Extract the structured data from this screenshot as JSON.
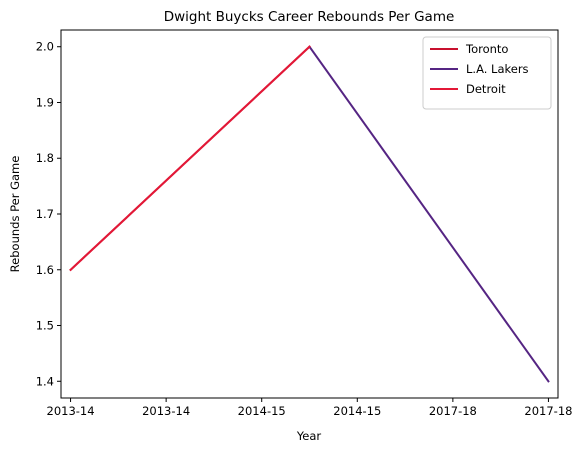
{
  "chart_data": {
    "type": "line",
    "title": "Dwight Buycks Career Rebounds Per Game",
    "xlabel": "Year",
    "ylabel": "Rebounds Per Game",
    "x_tick_labels": [
      "2013-14",
      "2013-14",
      "2014-15",
      "2014-15",
      "2017-18",
      "2017-18"
    ],
    "y_ticks": [
      1.4,
      1.5,
      1.6,
      1.7,
      1.8,
      1.9,
      2.0
    ],
    "xlim": [
      -0.1,
      5.1
    ],
    "ylim": [
      1.37,
      2.03
    ],
    "grid": false,
    "legend_position": "top-right",
    "series": [
      {
        "name": "Toronto",
        "color": "#c8102e",
        "points": [
          [
            0,
            1.6
          ],
          [
            2.5,
            2.0
          ]
        ]
      },
      {
        "name": "L.A. Lakers",
        "color": "#552583",
        "points": [
          [
            2.5,
            2.0
          ],
          [
            5,
            1.4
          ]
        ]
      },
      {
        "name": "Detroit",
        "color": "#e31837",
        "points": [
          [
            0,
            1.6
          ],
          [
            2.5,
            2.0
          ]
        ]
      }
    ]
  }
}
